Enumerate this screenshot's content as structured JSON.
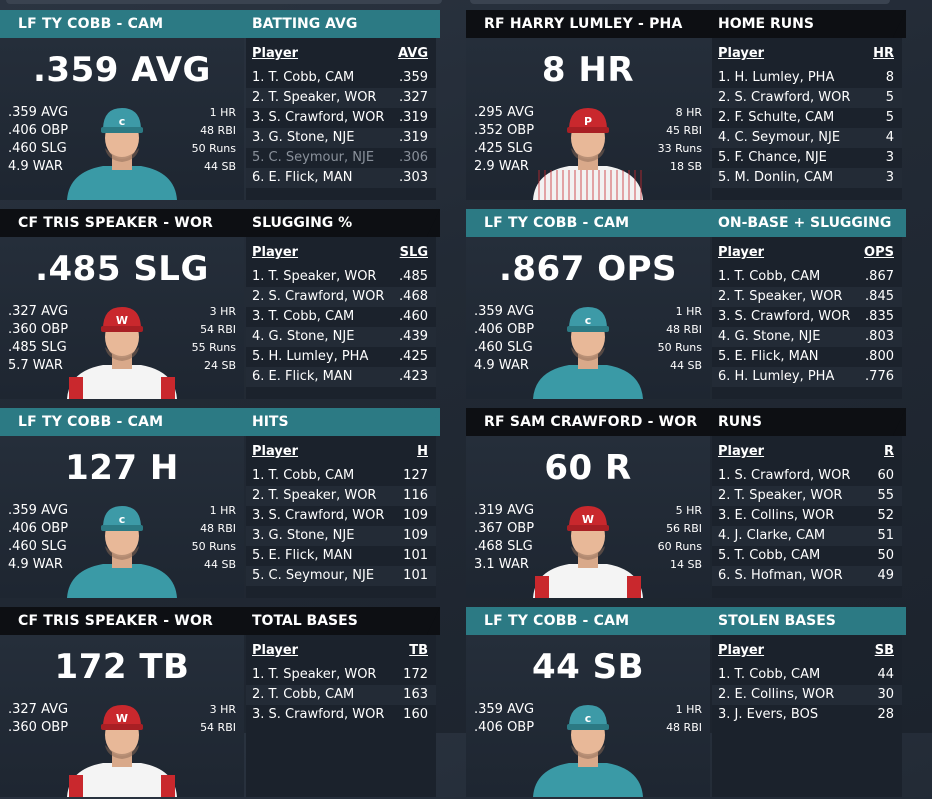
{
  "panels": [
    {
      "player_title": "LF TY COBB - CAM",
      "category": "BATTING AVG",
      "header_style": "teal",
      "headline": ".359 AVG",
      "left_stats": [
        ".359 AVG",
        ".406 OBP",
        ".460 SLG",
        "4.9 WAR"
      ],
      "right_stats": [
        "1 HR",
        "48 RBI",
        "50 Runs",
        "44 SB"
      ],
      "avatar": "teal",
      "table_header": {
        "player": "Player",
        "stat": "AVG"
      },
      "rows": [
        {
          "name": "1. T. Cobb, CAM",
          "value": ".359"
        },
        {
          "name": "2. T. Speaker, WOR",
          "value": ".327"
        },
        {
          "name": "3. S. Crawford, WOR",
          "value": ".319"
        },
        {
          "name": "3. G. Stone, NJE",
          "value": ".319"
        },
        {
          "name": "5. C. Seymour, NJE",
          "value": ".306",
          "dim": true
        },
        {
          "name": "6. E. Flick, MAN",
          "value": ".303"
        }
      ]
    },
    {
      "player_title": "RF HARRY LUMLEY - PHA",
      "category": "HOME RUNS",
      "header_style": "dark",
      "headline": "8 HR",
      "left_stats": [
        ".295 AVG",
        ".352 OBP",
        ".425 SLG",
        "2.9 WAR"
      ],
      "right_stats": [
        "8 HR",
        "45 RBI",
        "33 Runs",
        "18 SB"
      ],
      "avatar": "pinstripe",
      "table_header": {
        "player": "Player",
        "stat": "HR"
      },
      "rows": [
        {
          "name": "1. H. Lumley, PHA",
          "value": "8"
        },
        {
          "name": "2. S. Crawford, WOR",
          "value": "5"
        },
        {
          "name": "2. F. Schulte, CAM",
          "value": "5"
        },
        {
          "name": "4. C. Seymour, NJE",
          "value": "4"
        },
        {
          "name": "5. F. Chance, NJE",
          "value": "3"
        },
        {
          "name": "5. M. Donlin, CAM",
          "value": "3"
        }
      ]
    },
    {
      "player_title": "CF TRIS SPEAKER - WOR",
      "category": "SLUGGING %",
      "header_style": "dark",
      "headline": ".485 SLG",
      "left_stats": [
        ".327 AVG",
        ".360 OBP",
        ".485 SLG",
        "5.7 WAR"
      ],
      "right_stats": [
        "3 HR",
        "54 RBI",
        "55 Runs",
        "24 SB"
      ],
      "avatar": "red",
      "table_header": {
        "player": "Player",
        "stat": "SLG"
      },
      "rows": [
        {
          "name": "1. T. Speaker, WOR",
          "value": ".485"
        },
        {
          "name": "2. S. Crawford, WOR",
          "value": ".468"
        },
        {
          "name": "3. T. Cobb, CAM",
          "value": ".460"
        },
        {
          "name": "4. G. Stone, NJE",
          "value": ".439"
        },
        {
          "name": "5. H. Lumley, PHA",
          "value": ".425"
        },
        {
          "name": "6. E. Flick, MAN",
          "value": ".423"
        }
      ]
    },
    {
      "player_title": "LF TY COBB - CAM",
      "category": "ON-BASE + SLUGGING",
      "header_style": "teal",
      "headline": ".867 OPS",
      "left_stats": [
        ".359 AVG",
        ".406 OBP",
        ".460 SLG",
        "4.9 WAR"
      ],
      "right_stats": [
        "1 HR",
        "48 RBI",
        "50 Runs",
        "44 SB"
      ],
      "avatar": "teal",
      "table_header": {
        "player": "Player",
        "stat": "OPS"
      },
      "rows": [
        {
          "name": "1. T. Cobb, CAM",
          "value": ".867"
        },
        {
          "name": "2. T. Speaker, WOR",
          "value": ".845"
        },
        {
          "name": "3. S. Crawford, WOR",
          "value": ".835"
        },
        {
          "name": "4. G. Stone, NJE",
          "value": ".803"
        },
        {
          "name": "5. E. Flick, MAN",
          "value": ".800"
        },
        {
          "name": "6. H. Lumley, PHA",
          "value": ".776"
        }
      ]
    },
    {
      "player_title": "LF TY COBB - CAM",
      "category": "HITS",
      "header_style": "teal",
      "headline": "127 H",
      "left_stats": [
        ".359 AVG",
        ".406 OBP",
        ".460 SLG",
        "4.9 WAR"
      ],
      "right_stats": [
        "1 HR",
        "48 RBI",
        "50 Runs",
        "44 SB"
      ],
      "avatar": "teal",
      "table_header": {
        "player": "Player",
        "stat": "H"
      },
      "rows": [
        {
          "name": "1. T. Cobb, CAM",
          "value": "127"
        },
        {
          "name": "2. T. Speaker, WOR",
          "value": "116"
        },
        {
          "name": "3. S. Crawford, WOR",
          "value": "109"
        },
        {
          "name": "3. G. Stone, NJE",
          "value": "109"
        },
        {
          "name": "5. E. Flick, MAN",
          "value": "101"
        },
        {
          "name": "5. C. Seymour, NJE",
          "value": "101"
        }
      ]
    },
    {
      "player_title": "RF SAM CRAWFORD - WOR",
      "category": "RUNS",
      "header_style": "dark",
      "headline": "60 R",
      "left_stats": [
        ".319 AVG",
        ".367 OBP",
        ".468 SLG",
        "3.1 WAR"
      ],
      "right_stats": [
        "5 HR",
        "56 RBI",
        "60 Runs",
        "14 SB"
      ],
      "avatar": "red",
      "table_header": {
        "player": "Player",
        "stat": "R"
      },
      "rows": [
        {
          "name": "1. S. Crawford, WOR",
          "value": "60"
        },
        {
          "name": "2. T. Speaker, WOR",
          "value": "55"
        },
        {
          "name": "3. E. Collins, WOR",
          "value": "52"
        },
        {
          "name": "4. J. Clarke, CAM",
          "value": "51"
        },
        {
          "name": "5. T. Cobb, CAM",
          "value": "50"
        },
        {
          "name": "6. S. Hofman, WOR",
          "value": "49"
        }
      ]
    },
    {
      "player_title": "CF TRIS SPEAKER - WOR",
      "category": "TOTAL BASES",
      "header_style": "dark",
      "headline": "172 TB",
      "left_stats": [
        ".327 AVG",
        ".360 OBP"
      ],
      "right_stats": [
        "3 HR",
        "54 RBI"
      ],
      "avatar": "red",
      "table_header": {
        "player": "Player",
        "stat": "TB"
      },
      "rows": [
        {
          "name": "1. T. Speaker, WOR",
          "value": "172"
        },
        {
          "name": "2. T. Cobb, CAM",
          "value": "163"
        },
        {
          "name": "3. S. Crawford, WOR",
          "value": "160"
        }
      ]
    },
    {
      "player_title": "LF TY COBB - CAM",
      "category": "STOLEN BASES",
      "header_style": "teal",
      "headline": "44 SB",
      "left_stats": [
        ".359 AVG",
        ".406 OBP"
      ],
      "right_stats": [
        "1 HR",
        "48 RBI"
      ],
      "avatar": "teal",
      "table_header": {
        "player": "Player",
        "stat": "SB"
      },
      "rows": [
        {
          "name": "1. T. Cobb, CAM",
          "value": "44"
        },
        {
          "name": "2. E. Collins, WOR",
          "value": "30"
        },
        {
          "name": "3. J. Evers, BOS",
          "value": "28"
        }
      ]
    }
  ],
  "colors": {
    "teal_header": "#2c7a84",
    "dark_header": "#0d0f13",
    "jersey_teal": "#3a9aa6",
    "jersey_red": "#c9282d"
  }
}
